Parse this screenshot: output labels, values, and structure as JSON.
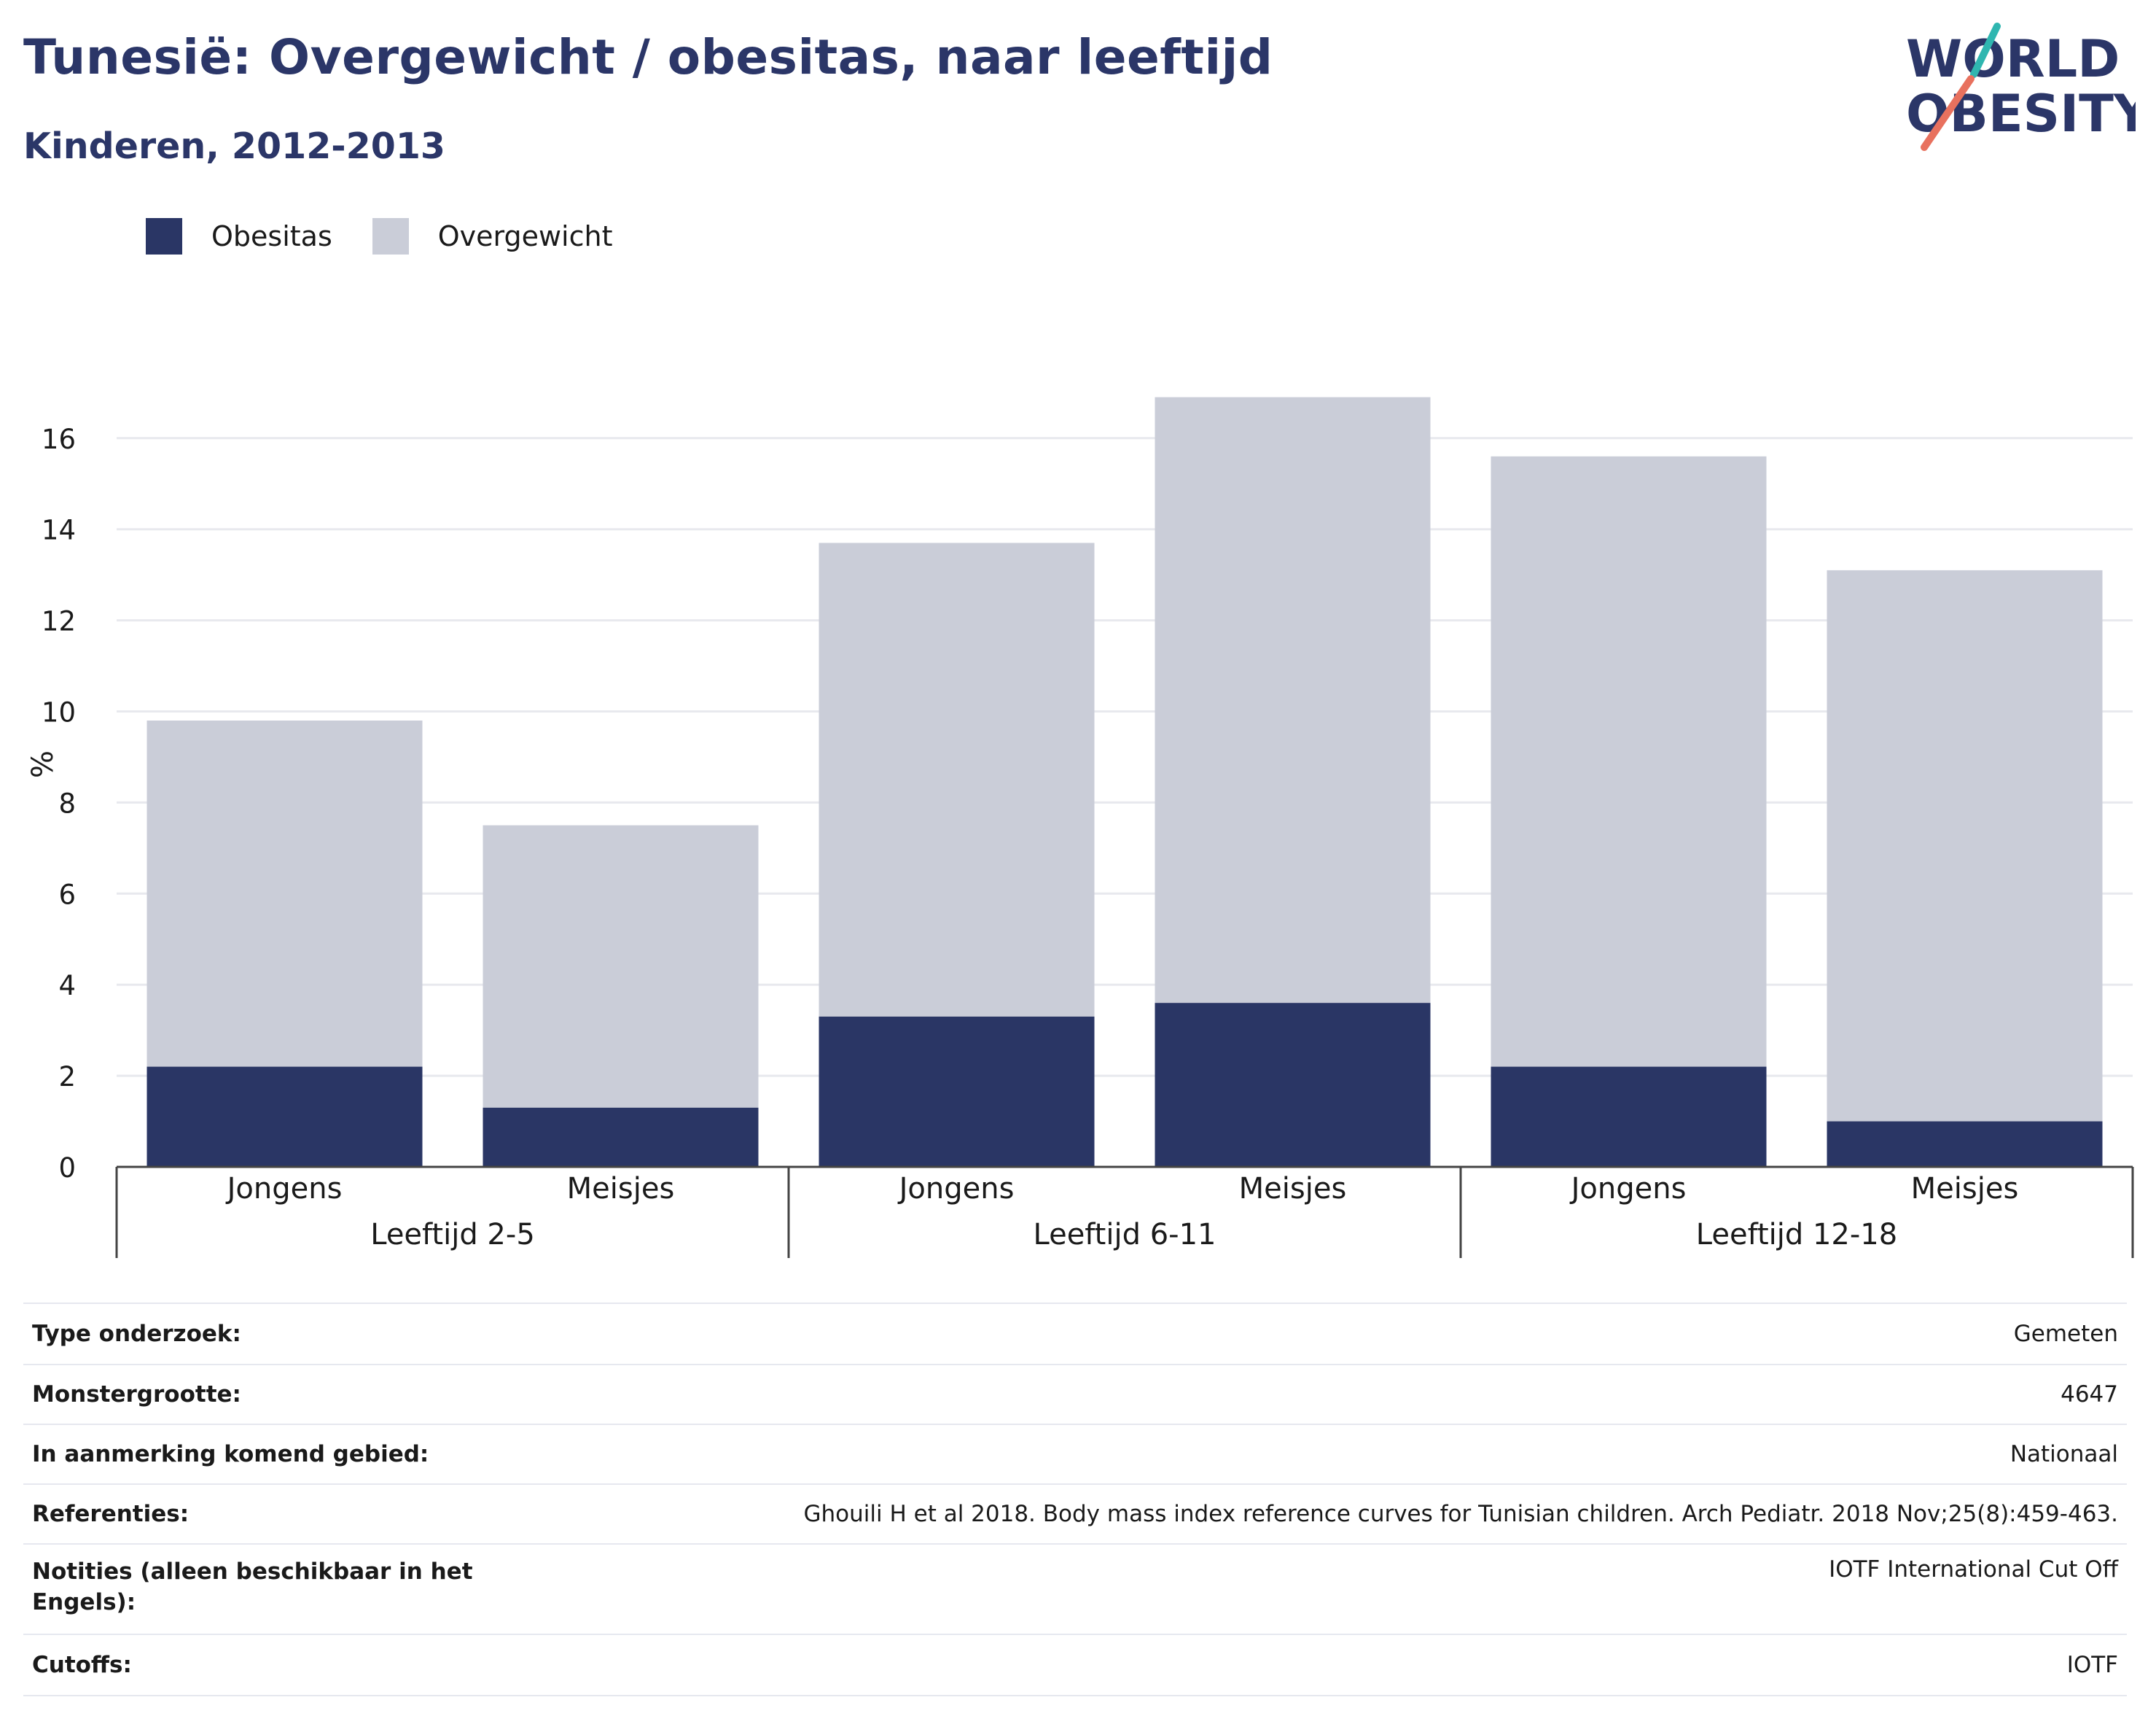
{
  "title": "Tunesië: Overgewicht / obesitas, naar leeftijd",
  "subtitle": "Kinderen, 2012-2013",
  "logo": {
    "line1": "WORLD",
    "line2": "OBESITY"
  },
  "colors": {
    "title": "#2b3668",
    "obesitas": "#2a3665",
    "overgewicht": "#cacdd8",
    "grid": "#e8e9ee",
    "axis": "#444444"
  },
  "legend": [
    {
      "label": "Obesitas",
      "color": "#2a3665"
    },
    {
      "label": "Overgewicht",
      "color": "#cacdd8"
    }
  ],
  "chart_data": {
    "type": "bar",
    "stacked": true,
    "title": "Tunesië: Overgewicht / obesitas, naar leeftijd",
    "subtitle": "Kinderen, 2012-2013",
    "ylabel": "%",
    "ylim": [
      0,
      18
    ],
    "yticks": [
      0,
      2,
      4,
      6,
      8,
      10,
      12,
      14,
      16
    ],
    "grid": true,
    "legend_position": "top-left",
    "groups": [
      {
        "label": "Leeftijd 2-5",
        "categories": [
          "Jongens",
          "Meisjes"
        ]
      },
      {
        "label": "Leeftijd 6-11",
        "categories": [
          "Jongens",
          "Meisjes"
        ]
      },
      {
        "label": "Leeftijd 12-18",
        "categories": [
          "Jongens",
          "Meisjes"
        ]
      }
    ],
    "categories": [
      "Jongens",
      "Meisjes",
      "Jongens",
      "Meisjes",
      "Jongens",
      "Meisjes"
    ],
    "series": [
      {
        "name": "Obesitas",
        "values": [
          2.2,
          1.3,
          3.3,
          3.6,
          2.2,
          1.0
        ]
      },
      {
        "name": "Overgewicht",
        "values": [
          7.6,
          6.2,
          10.4,
          13.3,
          13.4,
          12.1
        ]
      }
    ]
  },
  "table": [
    {
      "key": "Type onderzoek:",
      "value": "Gemeten"
    },
    {
      "key": "Monstergrootte:",
      "value": "4647"
    },
    {
      "key": "In aanmerking komend gebied:",
      "value": "Nationaal"
    },
    {
      "key": "Referenties:",
      "value": "Ghouili H et al 2018. Body mass index reference curves for Tunisian children. Arch Pediatr. 2018 Nov;25(8):459-463."
    },
    {
      "key": "Notities (alleen beschikbaar in het Engels):",
      "value": "IOTF International Cut Off"
    },
    {
      "key": "Cutoffs:",
      "value": "IOTF"
    }
  ]
}
